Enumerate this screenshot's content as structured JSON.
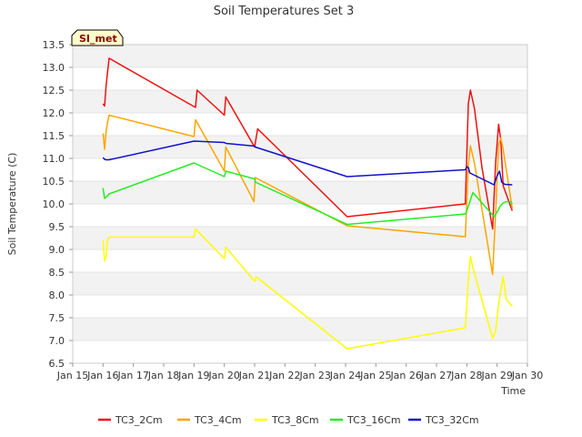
{
  "chart_data": {
    "type": "line",
    "title": "Soil Temperatures Set 3",
    "xlabel": "Time",
    "ylabel": "Soil Temperature (C)",
    "badge": "SI_met",
    "xlim": [
      "2015-01-15",
      "2015-01-30"
    ],
    "ylim": [
      6.5,
      13.5
    ],
    "yticks": [
      "6.5",
      "7.0",
      "7.5",
      "8.0",
      "8.5",
      "9.0",
      "9.5",
      "10.0",
      "10.5",
      "11.0",
      "11.5",
      "12.0",
      "12.5",
      "13.0",
      "13.5"
    ],
    "xticks": [
      "Jan 15",
      "Jan 16",
      "Jan 17",
      "Jan 18",
      "Jan 19",
      "Jan 20",
      "Jan 21",
      "Jan 22",
      "Jan 23",
      "Jan 24",
      "Jan 25",
      "Jan 26",
      "Jan 27",
      "Jan 28",
      "Jan 29",
      "Jan 30"
    ],
    "grid": "horizontal bands",
    "legend_position": "bottom",
    "series": [
      {
        "name": "TC3_2Cm",
        "color": "#ee1111",
        "x": [
          16.0,
          16.05,
          16.1,
          16.15,
          16.2,
          19.05,
          19.1,
          20.0,
          20.05,
          21.0,
          21.1,
          24.05,
          27.95,
          28.05,
          28.12,
          28.25,
          28.5,
          28.85,
          28.95,
          29.05,
          29.12,
          29.2,
          29.5
        ],
        "y": [
          12.2,
          12.15,
          12.6,
          12.9,
          13.2,
          12.12,
          12.5,
          11.95,
          12.35,
          11.25,
          11.65,
          9.72,
          10.0,
          12.2,
          12.5,
          12.1,
          10.8,
          9.45,
          10.9,
          11.75,
          11.4,
          10.4,
          9.85
        ]
      },
      {
        "name": "TC3_4Cm",
        "color": "#ffa500",
        "x": [
          16.0,
          16.05,
          16.1,
          16.15,
          16.2,
          19.0,
          19.05,
          20.0,
          20.05,
          20.98,
          21.02,
          24.05,
          27.95,
          28.05,
          28.12,
          28.25,
          28.85,
          28.95,
          29.05,
          29.12,
          29.2,
          29.5
        ],
        "y": [
          11.55,
          11.2,
          11.6,
          11.8,
          11.95,
          11.48,
          11.85,
          10.72,
          11.25,
          10.05,
          10.58,
          9.52,
          9.28,
          10.85,
          11.28,
          10.9,
          8.45,
          9.8,
          11.3,
          11.45,
          11.2,
          9.9
        ]
      },
      {
        "name": "TC3_8Cm",
        "color": "#ffff00",
        "x": [
          16.0,
          16.05,
          16.1,
          16.15,
          16.2,
          19.0,
          19.05,
          20.0,
          20.05,
          21.0,
          21.05,
          24.05,
          27.95,
          28.05,
          28.12,
          28.2,
          28.85,
          28.95,
          29.05,
          29.12,
          29.2,
          29.3,
          29.5
        ],
        "y": [
          9.2,
          8.75,
          8.85,
          9.2,
          9.27,
          9.27,
          9.45,
          8.8,
          9.05,
          8.3,
          8.4,
          6.82,
          7.28,
          8.3,
          8.85,
          8.6,
          7.05,
          7.2,
          7.8,
          8.1,
          8.4,
          7.9,
          7.75
        ]
      },
      {
        "name": "TC3_16Cm",
        "color": "#22ee22",
        "x": [
          16.0,
          16.05,
          16.1,
          16.15,
          16.2,
          19.0,
          20.0,
          20.05,
          21.0,
          21.02,
          24.05,
          27.95,
          28.0,
          28.1,
          28.2,
          28.9,
          29.0,
          29.1,
          29.2,
          29.3,
          29.45,
          29.5
        ],
        "y": [
          10.35,
          10.12,
          10.15,
          10.18,
          10.22,
          10.9,
          10.6,
          10.72,
          10.55,
          10.48,
          9.55,
          9.78,
          9.85,
          10.05,
          10.25,
          9.72,
          9.82,
          9.95,
          10.02,
          10.05,
          10.05,
          10.0
        ]
      },
      {
        "name": "TC3_32Cm",
        "color": "#1111cc",
        "x": [
          16.0,
          16.05,
          16.1,
          16.15,
          16.2,
          19.0,
          20.0,
          20.05,
          21.0,
          21.02,
          24.05,
          27.95,
          28.0,
          28.05,
          28.1,
          28.9,
          29.0,
          29.08,
          29.15,
          29.25,
          29.5
        ],
        "y": [
          11.02,
          10.98,
          10.97,
          10.97,
          10.97,
          11.38,
          11.35,
          11.33,
          11.27,
          11.25,
          10.6,
          10.75,
          10.82,
          10.8,
          10.68,
          10.42,
          10.62,
          10.72,
          10.48,
          10.43,
          10.42
        ]
      }
    ]
  }
}
